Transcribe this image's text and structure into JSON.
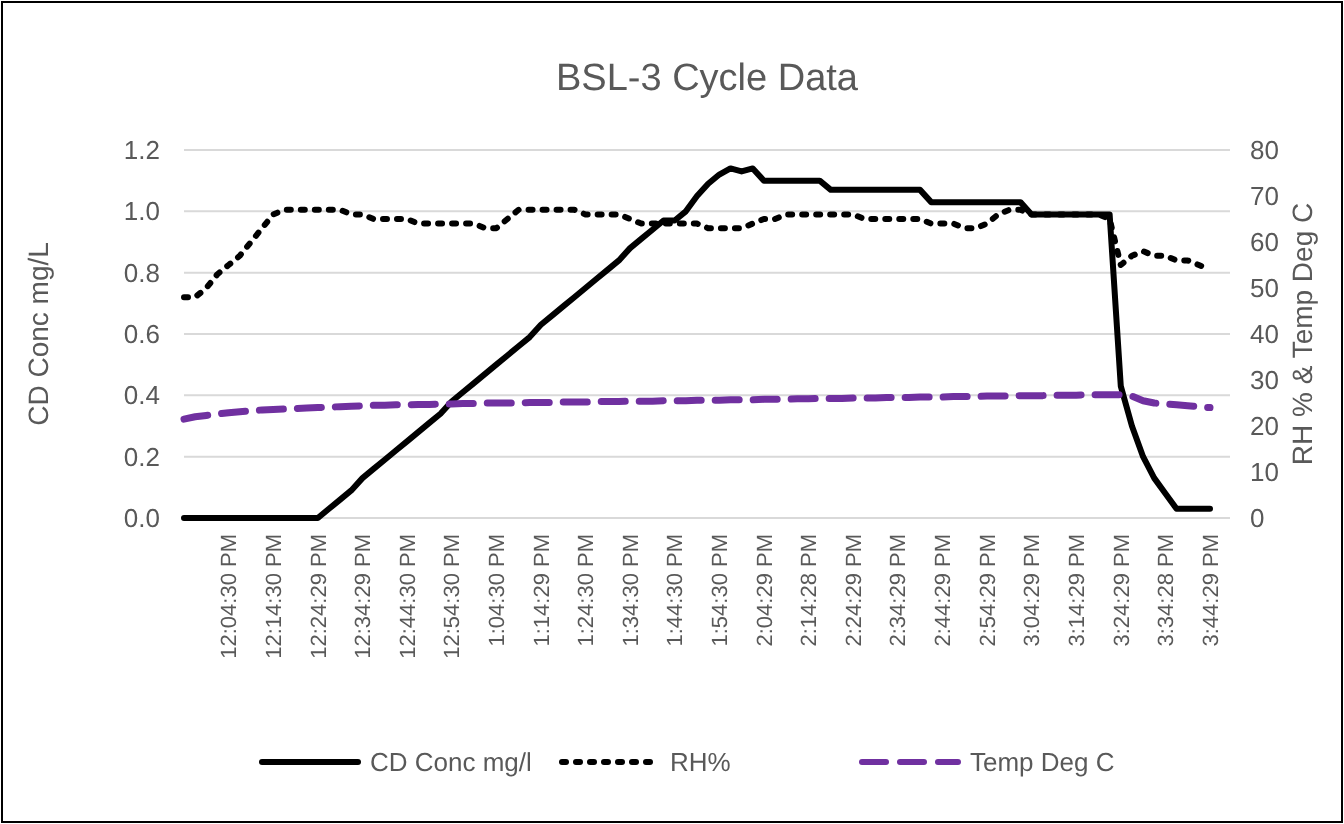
{
  "chart_data": {
    "type": "line",
    "title": "BSL-3 Cycle Data",
    "ylabel": "CD Conc mg/L",
    "y2label": "RH % & Temp Deg C",
    "categories": [
      null,
      null,
      null,
      null,
      "12:04:30 PM",
      null,
      null,
      null,
      "12:14:30 PM",
      null,
      null,
      null,
      "12:24:29 PM",
      null,
      null,
      null,
      "12:34:29 PM",
      null,
      null,
      null,
      "12:44:30 PM",
      null,
      null,
      null,
      "12:54:30 PM",
      null,
      null,
      null,
      "1:04:30 PM",
      null,
      null,
      null,
      "1:14:29 PM",
      null,
      null,
      null,
      "1:24:30 PM",
      null,
      null,
      null,
      "1:34:30 PM",
      null,
      null,
      null,
      "1:44:30 PM",
      null,
      null,
      null,
      "1:54:30 PM",
      null,
      null,
      null,
      "2:04:29 PM",
      null,
      null,
      null,
      "2:14:28 PM",
      null,
      null,
      null,
      "2:24:29 PM",
      null,
      null,
      null,
      "2:34:29 PM",
      null,
      null,
      null,
      "2:44:29 PM",
      null,
      null,
      null,
      "2:54:29 PM",
      null,
      null,
      null,
      "3:04:29 PM",
      null,
      null,
      null,
      "3:14:29 PM",
      null,
      null,
      null,
      "3:24:29 PM",
      null,
      null,
      null,
      "3:34:28 PM",
      null,
      null,
      null,
      "3:44:29 PM"
    ],
    "ylim": [
      0,
      1.2
    ],
    "yticks": [
      {
        "value": 0,
        "label": "0.0"
      },
      0.2,
      0.4,
      0.6,
      0.8,
      {
        "value": 1,
        "label": "1.0"
      },
      1.2
    ],
    "y2lim": [
      0,
      80
    ],
    "y2ticks": [
      0,
      10,
      20,
      30,
      40,
      50,
      60,
      70,
      80
    ],
    "grid": "y",
    "legend": "bottom",
    "series": [
      {
        "name": "CD Conc mg/l",
        "color": "#000000",
        "line_style": "solid",
        "values": [
          0,
          0,
          0,
          0,
          0,
          0,
          0,
          0,
          0,
          0,
          0,
          0,
          0,
          0.03,
          0.06,
          0.09,
          0.13,
          0.16,
          0.19,
          0.22,
          0.25,
          0.28,
          0.31,
          0.34,
          0.38,
          0.41,
          0.44,
          0.47,
          0.5,
          0.53,
          0.56,
          0.59,
          0.63,
          0.66,
          0.69,
          0.72,
          0.75,
          0.78,
          0.81,
          0.84,
          0.88,
          0.91,
          0.94,
          0.97,
          0.97,
          1.0,
          1.05,
          1.09,
          1.12,
          1.14,
          1.13,
          1.14,
          1.1,
          1.1,
          1.1,
          1.1,
          1.1,
          1.1,
          1.07,
          1.07,
          1.07,
          1.07,
          1.07,
          1.07,
          1.07,
          1.07,
          1.07,
          1.03,
          1.03,
          1.03,
          1.03,
          1.03,
          1.03,
          1.03,
          1.03,
          1.03,
          0.99,
          0.99,
          0.99,
          0.99,
          0.99,
          0.99,
          0.99,
          0.99,
          0.43,
          0.3,
          0.2,
          0.13,
          0.08,
          0.03,
          0.03,
          0.03,
          0.03
        ]
      },
      {
        "name": "RH%",
        "color": "#000000",
        "line_style": "dotted",
        "axis": "y2",
        "values": [
          48,
          48,
          50,
          53,
          55,
          57,
          60,
          63,
          66,
          67,
          67,
          67,
          67,
          67,
          67,
          66,
          66,
          65,
          65,
          65,
          65,
          64,
          64,
          64,
          64,
          64,
          64,
          63,
          63,
          65,
          67,
          67,
          67,
          67,
          67,
          67,
          66,
          66,
          66,
          66,
          65,
          64,
          64,
          64,
          64,
          64,
          64,
          63,
          63,
          63,
          63,
          64,
          65,
          65,
          66,
          66,
          66,
          66,
          66,
          66,
          66,
          65,
          65,
          65,
          65,
          65,
          65,
          64,
          64,
          64,
          63,
          63,
          64,
          66,
          67,
          67,
          66,
          66,
          66,
          66,
          66,
          66,
          66,
          65,
          55,
          57,
          58,
          57,
          57,
          56,
          56,
          55,
          54
        ]
      },
      {
        "name": "Temp Deg C",
        "color": "#7030a0",
        "line_style": "dashed",
        "axis": "y2",
        "values": [
          21.5,
          22,
          22.3,
          22.6,
          22.9,
          23.1,
          23.3,
          23.5,
          23.6,
          23.7,
          23.8,
          23.9,
          24,
          24.1,
          24.2,
          24.3,
          24.4,
          24.5,
          24.5,
          24.6,
          24.6,
          24.7,
          24.7,
          24.8,
          24.8,
          24.9,
          24.9,
          25,
          25,
          25,
          25,
          25.1,
          25.1,
          25.1,
          25.2,
          25.2,
          25.2,
          25.3,
          25.3,
          25.3,
          25.4,
          25.4,
          25.4,
          25.5,
          25.5,
          25.5,
          25.6,
          25.6,
          25.6,
          25.7,
          25.7,
          25.7,
          25.8,
          25.8,
          25.8,
          25.9,
          25.9,
          26,
          26,
          26,
          26.1,
          26.1,
          26.1,
          26.2,
          26.2,
          26.2,
          26.3,
          26.3,
          26.3,
          26.4,
          26.4,
          26.4,
          26.5,
          26.5,
          26.5,
          26.6,
          26.6,
          26.6,
          26.7,
          26.7,
          26.7,
          26.8,
          26.8,
          26.8,
          26.8,
          26.5,
          25.5,
          25,
          24.8,
          24.6,
          24.4,
          24.2,
          24
        ]
      }
    ]
  }
}
